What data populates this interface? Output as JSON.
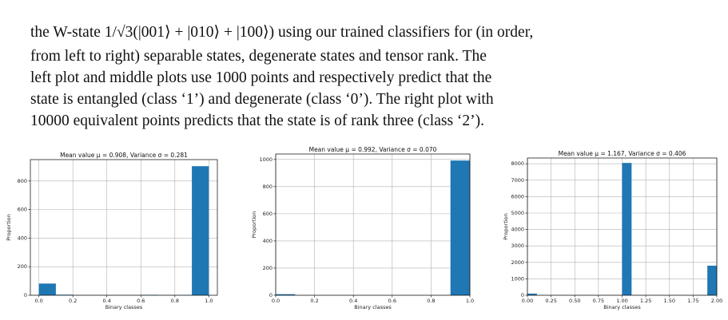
{
  "text": {
    "lines": [
      "the W-state 1/√3(|001⟩ + |010⟩ + |100⟩) using our trained classifiers for (in order,",
      "from left to right) separable states, degenerate states and tensor rank. The",
      "left plot and middle plots use 1000 points and respectively predict that the",
      "state is entangled (class ‘1’) and degenerate (class ‘0’). The right plot with",
      "10000 equivalent points predicts that the state is of rank three (class ‘2’)."
    ]
  },
  "chart_data": [
    {
      "type": "histogram",
      "title": "Mean value μ = 0.908, Variance σ = 0.281",
      "x_label": "Binary classes",
      "y_label": "Proportion",
      "color": "#1f77b4",
      "grid": true,
      "bins": [
        0,
        0.1,
        0.2,
        0.3,
        0.4,
        0.5,
        0.6,
        0.7,
        0.8,
        0.9,
        1.0
      ],
      "values": [
        82,
        4,
        1,
        1,
        1,
        1,
        3,
        1,
        2,
        904
      ],
      "xlim": [
        -0.05,
        1.05
      ],
      "ylim": [
        0,
        950
      ],
      "xticks": [
        {
          "value": 0,
          "label": "0.0"
        },
        {
          "value": 0.2,
          "label": "0.2"
        },
        {
          "value": 0.4,
          "label": "0.4"
        },
        {
          "value": 0.6,
          "label": "0.6"
        },
        {
          "value": 0.8,
          "label": "0.8"
        },
        {
          "value": 1,
          "label": "1.0"
        }
      ],
      "yticks": [
        0,
        200,
        400,
        600,
        800
      ]
    },
    {
      "type": "histogram",
      "title": "Mean value μ = 0.992, Variance σ = 0.070",
      "x_label": "Binary classes",
      "y_label": "Proportion",
      "color": "#1f77b4",
      "grid": true,
      "bins": [
        0,
        0.1,
        0.2,
        0.3,
        0.4,
        0.5,
        0.6,
        0.7,
        0.8,
        0.9,
        1.0
      ],
      "values": [
        8,
        0,
        0,
        0,
        0,
        0,
        0,
        0,
        0,
        992
      ],
      "xlim": [
        0,
        1
      ],
      "ylim": [
        0,
        1040
      ],
      "xticks": [
        {
          "value": 0,
          "label": "0.0"
        },
        {
          "value": 0.2,
          "label": "0.2"
        },
        {
          "value": 0.4,
          "label": "0.4"
        },
        {
          "value": 0.6,
          "label": "0.6"
        },
        {
          "value": 0.8,
          "label": "0.8"
        },
        {
          "value": 1,
          "label": "1.0"
        }
      ],
      "yticks": [
        0,
        200,
        400,
        600,
        800,
        1000
      ]
    },
    {
      "type": "histogram",
      "title": "Mean value μ = 1.167, Variance σ = 0.406",
      "x_label": "Binary classes",
      "y_label": "Proportion",
      "color": "#1f77b4",
      "grid": true,
      "bins": [
        0,
        0.1,
        0.2,
        0.3,
        0.4,
        0.5,
        0.6,
        0.7,
        0.8,
        0.9,
        1.0,
        1.1,
        1.2,
        1.3,
        1.4,
        1.5,
        1.6,
        1.7,
        1.8,
        1.9,
        2.0
      ],
      "values": [
        100,
        2,
        2,
        2,
        2,
        2,
        2,
        2,
        2,
        2,
        8050,
        2,
        2,
        2,
        2,
        2,
        2,
        2,
        2,
        1800
      ],
      "xlim": [
        0,
        2
      ],
      "ylim": [
        0,
        8350
      ],
      "xticks": [
        {
          "value": 0,
          "label": "0.00"
        },
        {
          "value": 0.25,
          "label": "0.25"
        },
        {
          "value": 0.5,
          "label": "0.50"
        },
        {
          "value": 0.75,
          "label": "0.75"
        },
        {
          "value": 1,
          "label": "1.00"
        },
        {
          "value": 1.25,
          "label": "1.25"
        },
        {
          "value": 1.5,
          "label": "1.50"
        },
        {
          "value": 1.75,
          "label": "1.75"
        },
        {
          "value": 2,
          "label": "2.00"
        }
      ],
      "yticks": [
        0,
        1000,
        2000,
        3000,
        4000,
        5000,
        6000,
        7000,
        8000
      ]
    }
  ]
}
